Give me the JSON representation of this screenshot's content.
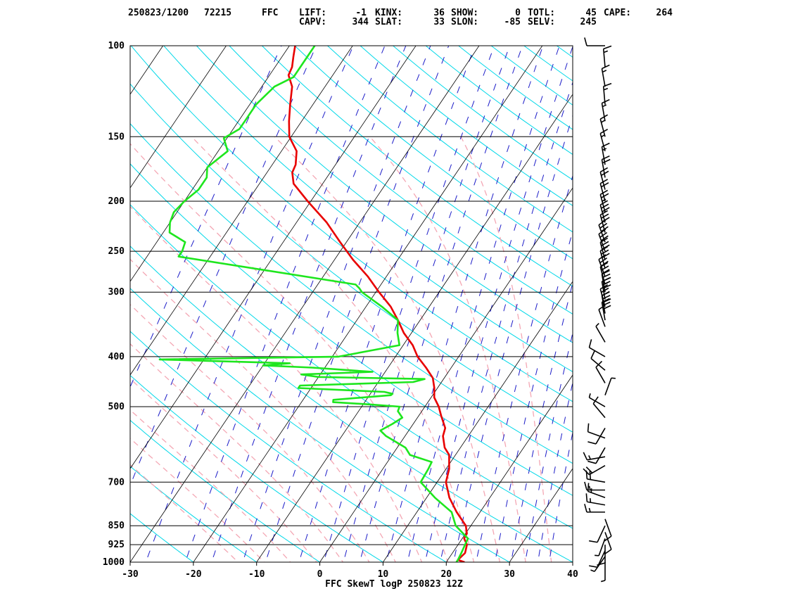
{
  "header": {
    "line1": [
      "250823/1200",
      "72215",
      "FFC",
      "LIFT:",
      "-1",
      "KINX:",
      "36",
      "SHOW:",
      "0",
      "TOTL:",
      "45",
      "CAPE:",
      "264"
    ],
    "line2": [
      "CAPV:",
      "344",
      "SLAT:",
      "33",
      "SLON:",
      "-85",
      "SELV:",
      "245"
    ]
  },
  "colors": {
    "isobar": "#000000",
    "isotherm": "#000000",
    "dry_adiabat": "#00d8e8",
    "moist_adiabat": "#f4a7b4",
    "mixing_ratio": "#1c1cc8",
    "temperature": "#e80000",
    "dewpoint": "#1ee61e",
    "wind": "#000000"
  },
  "chart_data": {
    "type": "line",
    "title": "FFC SkewT logP 250823 12Z",
    "xlim": [
      -30,
      40
    ],
    "ylim": [
      1000,
      100
    ],
    "x_ticks": [
      "-30",
      "-20",
      "-10",
      "0",
      "10",
      "20",
      "30",
      "40"
    ],
    "y_ticks": [
      "100",
      "150",
      "200",
      "250",
      "300",
      "400",
      "500",
      "700",
      "850",
      "925",
      "1000"
    ],
    "series": [
      {
        "role": "temperature",
        "points": [
          [
            1000,
            22.9
          ],
          [
            990,
            21.6
          ],
          [
            960,
            22.0
          ],
          [
            925,
            21.4
          ],
          [
            900,
            20.3
          ],
          [
            880,
            20.2
          ],
          [
            850,
            19.2
          ],
          [
            800,
            16.3
          ],
          [
            750,
            13.6
          ],
          [
            700,
            11.4
          ],
          [
            660,
            10.5
          ],
          [
            620,
            9.0
          ],
          [
            600,
            7.5
          ],
          [
            570,
            6.0
          ],
          [
            550,
            5.5
          ],
          [
            520,
            3.5
          ],
          [
            500,
            2.2
          ],
          [
            480,
            0.5
          ],
          [
            460,
            -0.5
          ],
          [
            440,
            -1.8
          ],
          [
            420,
            -4.0
          ],
          [
            400,
            -6.5
          ],
          [
            380,
            -8.5
          ],
          [
            360,
            -11.2
          ],
          [
            340,
            -13.5
          ],
          [
            320,
            -16.1
          ],
          [
            300,
            -19.5
          ],
          [
            280,
            -22.9
          ],
          [
            260,
            -27.0
          ],
          [
            240,
            -31.0
          ],
          [
            220,
            -35.2
          ],
          [
            200,
            -40.5
          ],
          [
            185,
            -44.6
          ],
          [
            176,
            -46.0
          ],
          [
            170,
            -46.3
          ],
          [
            160,
            -47.6
          ],
          [
            150,
            -50.3
          ],
          [
            140,
            -52.0
          ],
          [
            130,
            -53.6
          ],
          [
            120,
            -55.2
          ],
          [
            114,
            -57.0
          ],
          [
            110,
            -57.3
          ],
          [
            105,
            -58.2
          ],
          [
            100,
            -59.1
          ]
        ]
      },
      {
        "role": "dewpoint",
        "points": [
          [
            1000,
            21.6
          ],
          [
            990,
            21.6
          ],
          [
            960,
            21.4
          ],
          [
            925,
            21.1
          ],
          [
            900,
            20.9
          ],
          [
            850,
            17.6
          ],
          [
            800,
            15.5
          ],
          [
            750,
            11.3
          ],
          [
            700,
            7.4
          ],
          [
            660,
            7.2
          ],
          [
            640,
            7.0
          ],
          [
            620,
            2.8
          ],
          [
            600,
            1.3
          ],
          [
            570,
            -3.0
          ],
          [
            556,
            -4.5
          ],
          [
            540,
            -3.3
          ],
          [
            525,
            -2.4
          ],
          [
            510,
            -3.8
          ],
          [
            500,
            -4.0
          ],
          [
            495,
            -9.0
          ],
          [
            490,
            -15.0
          ],
          [
            485,
            -15.2
          ],
          [
            475,
            -6.6
          ],
          [
            472,
            -6.5
          ],
          [
            468,
            -8.0
          ],
          [
            460,
            -22.0
          ],
          [
            455,
            -22.0
          ],
          [
            448,
            -4.5
          ],
          [
            442,
            -3.0
          ],
          [
            438,
            -20.0
          ],
          [
            433,
            -23.0
          ],
          [
            428,
            -12.0
          ],
          [
            420,
            -22.0
          ],
          [
            416,
            -30.0
          ],
          [
            412,
            -26.0
          ],
          [
            405,
            -47.0
          ],
          [
            400,
            -19.0
          ],
          [
            380,
            -10.6
          ],
          [
            360,
            -12.2
          ],
          [
            340,
            -13.5
          ],
          [
            320,
            -17.5
          ],
          [
            300,
            -22.2
          ],
          [
            295,
            -23.0
          ],
          [
            290,
            -24.0
          ],
          [
            256,
            -55.0
          ],
          [
            250,
            -55.0
          ],
          [
            240,
            -55.5
          ],
          [
            230,
            -59.0
          ],
          [
            220,
            -60.0
          ],
          [
            210,
            -60.5
          ],
          [
            200,
            -60.0
          ],
          [
            190,
            -59.0
          ],
          [
            180,
            -59.0
          ],
          [
            172,
            -60.0
          ],
          [
            160,
            -58.5
          ],
          [
            151,
            -60.5
          ],
          [
            145,
            -59.0
          ],
          [
            140,
            -59.0
          ],
          [
            130,
            -59.0
          ],
          [
            120,
            -58.0
          ],
          [
            115,
            -56.0
          ],
          [
            110,
            -56.0
          ],
          [
            105,
            -56.0
          ],
          [
            100,
            -56.0
          ]
        ]
      }
    ],
    "wind_barbs": [
      [
        1000,
        180,
        5
      ],
      [
        975,
        215,
        5
      ],
      [
        950,
        205,
        10
      ],
      [
        925,
        180,
        10
      ],
      [
        900,
        200,
        5
      ],
      [
        875,
        160,
        10
      ],
      [
        850,
        205,
        10
      ],
      [
        825,
        160,
        10
      ],
      [
        800,
        270,
        15
      ],
      [
        775,
        280,
        15
      ],
      [
        750,
        290,
        15
      ],
      [
        725,
        270,
        15
      ],
      [
        700,
        280,
        20
      ],
      [
        650,
        240,
        20
      ],
      [
        625,
        260,
        15
      ],
      [
        600,
        210,
        10
      ],
      [
        575,
        290,
        10
      ],
      [
        550,
        210,
        10
      ],
      [
        525,
        320,
        10
      ],
      [
        500,
        300,
        5
      ],
      [
        475,
        20,
        5
      ],
      [
        450,
        330,
        10
      ],
      [
        425,
        310,
        10
      ],
      [
        400,
        300,
        10
      ],
      [
        375,
        330,
        5
      ],
      [
        350,
        340,
        5
      ],
      [
        340,
        350,
        30
      ],
      [
        330,
        350,
        30
      ],
      [
        320,
        345,
        30
      ],
      [
        310,
        350,
        30
      ],
      [
        300,
        350,
        35
      ],
      [
        290,
        345,
        30
      ],
      [
        280,
        340,
        30
      ],
      [
        270,
        345,
        30
      ],
      [
        260,
        345,
        30
      ],
      [
        250,
        340,
        30
      ],
      [
        240,
        340,
        30
      ],
      [
        230,
        345,
        30
      ],
      [
        220,
        345,
        30
      ],
      [
        210,
        345,
        25
      ],
      [
        200,
        345,
        20
      ],
      [
        190,
        345,
        20
      ],
      [
        180,
        350,
        20
      ],
      [
        170,
        350,
        15
      ],
      [
        160,
        345,
        15
      ],
      [
        150,
        345,
        15
      ],
      [
        140,
        350,
        15
      ],
      [
        130,
        355,
        15
      ],
      [
        120,
        350,
        15
      ],
      [
        110,
        355,
        15
      ],
      [
        100,
        270,
        10
      ]
    ]
  }
}
